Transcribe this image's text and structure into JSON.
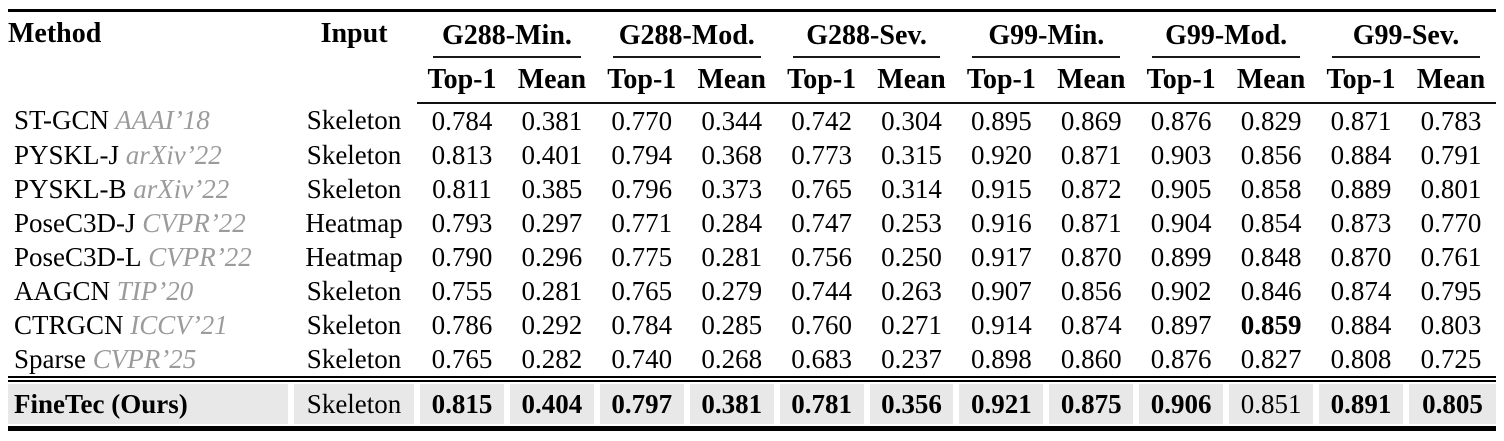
{
  "table": {
    "title": "Action quality assessment comparison table",
    "columns": {
      "method": "Method",
      "input": "Input"
    },
    "groups": [
      {
        "label": "G288-Min."
      },
      {
        "label": "G288-Mod."
      },
      {
        "label": "G288-Sev."
      },
      {
        "label": "G99-Min."
      },
      {
        "label": "G99-Mod."
      },
      {
        "label": "G99-Sev."
      }
    ],
    "subheaders": [
      "Top-1",
      "Mean"
    ],
    "rows": [
      {
        "method": "ST-GCN",
        "venue": "AAAI’18",
        "input": "Skeleton",
        "values": [
          "0.784",
          "0.381",
          "0.770",
          "0.344",
          "0.742",
          "0.304",
          "0.895",
          "0.869",
          "0.876",
          "0.829",
          "0.871",
          "0.783"
        ],
        "bold": [
          false,
          false,
          false,
          false,
          false,
          false,
          false,
          false,
          false,
          false,
          false,
          false
        ]
      },
      {
        "method": "PYSKL-J",
        "venue": "arXiv’22",
        "input": "Skeleton",
        "values": [
          "0.813",
          "0.401",
          "0.794",
          "0.368",
          "0.773",
          "0.315",
          "0.920",
          "0.871",
          "0.903",
          "0.856",
          "0.884",
          "0.791"
        ],
        "bold": [
          false,
          false,
          false,
          false,
          false,
          false,
          false,
          false,
          false,
          false,
          false,
          false
        ]
      },
      {
        "method": "PYSKL-B",
        "venue": "arXiv’22",
        "input": "Skeleton",
        "values": [
          "0.811",
          "0.385",
          "0.796",
          "0.373",
          "0.765",
          "0.314",
          "0.915",
          "0.872",
          "0.905",
          "0.858",
          "0.889",
          "0.801"
        ],
        "bold": [
          false,
          false,
          false,
          false,
          false,
          false,
          false,
          false,
          false,
          false,
          false,
          false
        ]
      },
      {
        "method": "PoseC3D-J",
        "venue": "CVPR’22",
        "input": "Heatmap",
        "values": [
          "0.793",
          "0.297",
          "0.771",
          "0.284",
          "0.747",
          "0.253",
          "0.916",
          "0.871",
          "0.904",
          "0.854",
          "0.873",
          "0.770"
        ],
        "bold": [
          false,
          false,
          false,
          false,
          false,
          false,
          false,
          false,
          false,
          false,
          false,
          false
        ]
      },
      {
        "method": "PoseC3D-L",
        "venue": "CVPR’22",
        "input": "Heatmap",
        "values": [
          "0.790",
          "0.296",
          "0.775",
          "0.281",
          "0.756",
          "0.250",
          "0.917",
          "0.870",
          "0.899",
          "0.848",
          "0.870",
          "0.761"
        ],
        "bold": [
          false,
          false,
          false,
          false,
          false,
          false,
          false,
          false,
          false,
          false,
          false,
          false
        ]
      },
      {
        "method": "AAGCN",
        "venue": "TIP’20",
        "input": "Skeleton",
        "values": [
          "0.755",
          "0.281",
          "0.765",
          "0.279",
          "0.744",
          "0.263",
          "0.907",
          "0.856",
          "0.902",
          "0.846",
          "0.874",
          "0.795"
        ],
        "bold": [
          false,
          false,
          false,
          false,
          false,
          false,
          false,
          false,
          false,
          false,
          false,
          false
        ]
      },
      {
        "method": "CTRGCN",
        "venue": "ICCV’21",
        "input": "Skeleton",
        "values": [
          "0.786",
          "0.292",
          "0.784",
          "0.285",
          "0.760",
          "0.271",
          "0.914",
          "0.874",
          "0.897",
          "0.859",
          "0.884",
          "0.803"
        ],
        "bold": [
          false,
          false,
          false,
          false,
          false,
          false,
          false,
          false,
          false,
          true,
          false,
          false
        ]
      },
      {
        "method": "Sparse",
        "venue": "CVPR’25",
        "input": "Skeleton",
        "values": [
          "0.765",
          "0.282",
          "0.740",
          "0.268",
          "0.683",
          "0.237",
          "0.898",
          "0.860",
          "0.876",
          "0.827",
          "0.808",
          "0.725"
        ],
        "bold": [
          false,
          false,
          false,
          false,
          false,
          false,
          false,
          false,
          false,
          false,
          false,
          false
        ]
      }
    ],
    "ours_row": {
      "method": "FineTec (Ours)",
      "venue": "",
      "input": "Skeleton",
      "values": [
        "0.815",
        "0.404",
        "0.797",
        "0.381",
        "0.781",
        "0.356",
        "0.921",
        "0.875",
        "0.906",
        "0.851",
        "0.891",
        "0.805"
      ],
      "bold": [
        true,
        true,
        true,
        true,
        true,
        true,
        true,
        true,
        true,
        false,
        true,
        true
      ]
    },
    "colors": {
      "highlight_bg": "#e8e8e8",
      "venue_text": "#9b9b9b",
      "rule": "#000000"
    }
  }
}
